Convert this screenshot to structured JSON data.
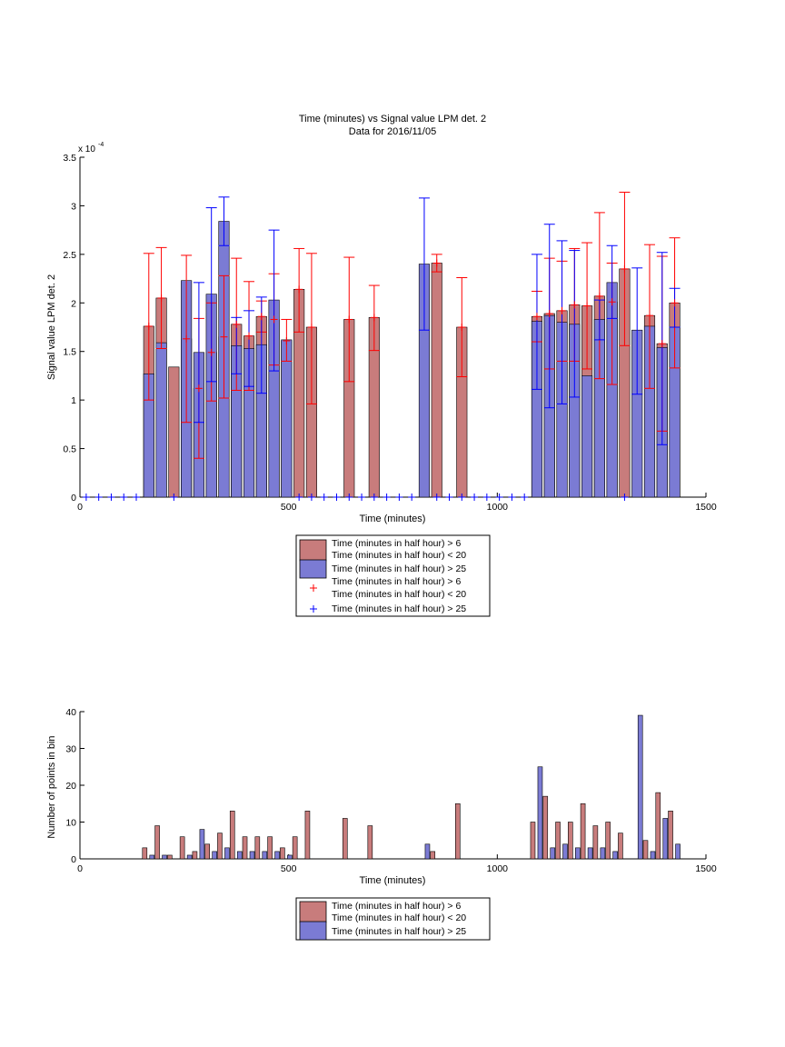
{
  "colors": {
    "red_bar": "#c87c7c",
    "blue_bar": "#7b7bd4",
    "red_err": "#ff0000",
    "blue_err": "#0000ff",
    "axis": "#000000"
  },
  "chart_data": [
    {
      "type": "bar",
      "title": "Time (minutes) vs Signal value LPM det. 2",
      "subtitle": "Data for 2016/11/05",
      "xlabel": "Time (minutes)",
      "ylabel": "Signal value LPM det. 2",
      "y_exponent_label": "x 10",
      "y_exponent": "-4",
      "xlim": [
        0,
        1500
      ],
      "ylim": [
        0,
        3.5
      ],
      "y_scale_factor": 0.0001,
      "xticks": [
        0,
        500,
        1000,
        1500
      ],
      "yticks": [
        0,
        0.5,
        1,
        1.5,
        2,
        2.5,
        3,
        3.5
      ],
      "xtick_labels": [
        "0",
        "500",
        "1000",
        "1500"
      ],
      "ytick_labels": [
        "0",
        "0.5",
        "1",
        "1.5",
        "2",
        "2.5",
        "3",
        "3.5"
      ],
      "grid": false,
      "legend_position": "below",
      "series": [
        {
          "name": "Time (minutes in half hour) > 6\nTime (minutes in half hour) < 20",
          "color": "#c87c7c",
          "x": [
            165,
            195,
            225,
            255,
            285,
            315,
            345,
            375,
            405,
            435,
            465,
            495,
            525,
            555,
            645,
            705,
            855,
            915,
            1095,
            1125,
            1155,
            1185,
            1215,
            1245,
            1275,
            1305,
            1365,
            1395,
            1425
          ],
          "values": [
            1.76,
            2.05,
            1.34,
            1.63,
            1.12,
            1.49,
            1.65,
            1.78,
            1.66,
            1.86,
            1.83,
            1.61,
            2.14,
            1.75,
            1.83,
            1.85,
            2.41,
            1.75,
            1.86,
            1.89,
            1.92,
            1.98,
            1.97,
            2.07,
            2.01,
            2.35,
            1.87,
            1.58,
            2.0
          ],
          "err_low": [
            1.0,
            1.53,
            1.34,
            0.77,
            0.4,
            0.99,
            1.02,
            1.1,
            1.1,
            1.7,
            1.36,
            1.4,
            1.7,
            0.96,
            1.19,
            1.51,
            2.32,
            1.24,
            1.6,
            1.32,
            1.4,
            1.4,
            1.32,
            1.22,
            1.16,
            1.56,
            1.12,
            0.68,
            1.33
          ],
          "err_high": [
            2.51,
            2.57,
            1.34,
            2.49,
            1.84,
            2.0,
            2.28,
            2.46,
            2.22,
            2.02,
            2.3,
            1.83,
            2.56,
            2.51,
            2.47,
            2.18,
            2.5,
            2.26,
            2.12,
            2.46,
            2.43,
            2.56,
            2.62,
            2.93,
            2.41,
            3.14,
            2.6,
            2.48,
            2.67
          ]
        },
        {
          "name": "Time (minutes in half hour) > 25",
          "color": "#7b7bd4",
          "x": [
            165,
            195,
            255,
            285,
            315,
            345,
            375,
            405,
            435,
            465,
            495,
            825,
            1095,
            1125,
            1155,
            1185,
            1215,
            1245,
            1275,
            1335,
            1365,
            1395,
            1425
          ],
          "values": [
            1.27,
            1.59,
            2.23,
            1.49,
            2.09,
            2.84,
            1.56,
            1.53,
            1.57,
            2.03,
            1.62,
            2.4,
            1.81,
            1.87,
            1.8,
            1.78,
            1.25,
            1.83,
            2.21,
            1.72,
            1.76,
            1.54,
            1.75
          ],
          "err_low": [
            1.27,
            1.59,
            2.23,
            0.77,
            1.19,
            2.59,
            1.27,
            1.14,
            1.07,
            1.3,
            1.62,
            1.72,
            1.11,
            0.92,
            0.96,
            1.03,
            1.25,
            1.62,
            1.84,
            1.06,
            1.76,
            0.54,
            1.75
          ],
          "err_high": [
            1.27,
            1.59,
            2.23,
            2.21,
            2.98,
            3.09,
            1.85,
            1.92,
            2.06,
            2.75,
            1.62,
            3.08,
            2.5,
            2.81,
            2.64,
            2.54,
            1.25,
            2.03,
            2.59,
            2.36,
            1.76,
            2.52,
            2.15
          ]
        }
      ],
      "marker_series": [
        {
          "name": "Time (minutes in half hour) > 6\nTime (minutes in half hour) < 20",
          "color": "#ff0000",
          "marker": "+",
          "x": [
            165,
            195,
            255,
            285,
            315,
            345,
            375,
            405,
            435,
            465,
            495,
            525,
            555,
            645,
            705,
            855,
            915,
            1095,
            1125,
            1155,
            1185,
            1215,
            1245,
            1275,
            1305,
            1365,
            1395,
            1425
          ],
          "values": [
            1.76,
            2.05,
            1.63,
            1.12,
            1.49,
            1.65,
            1.78,
            1.66,
            1.86,
            1.83,
            1.61,
            2.14,
            1.75,
            1.83,
            1.85,
            2.41,
            1.75,
            1.86,
            1.89,
            1.92,
            1.98,
            1.97,
            2.07,
            2.01,
            2.35,
            1.87,
            1.58,
            2.0
          ]
        },
        {
          "name": "Time (minutes in half hour) > 25",
          "color": "#0000ff",
          "marker": "+",
          "x": [
            15,
            45,
            75,
            105,
            135,
            225,
            525,
            555,
            585,
            615,
            645,
            675,
            705,
            735,
            765,
            795,
            855,
            885,
            915,
            945,
            975,
            1005,
            1035,
            1065,
            1305
          ],
          "values": [
            0,
            0,
            0,
            0,
            0,
            0,
            0,
            0,
            0,
            0,
            0,
            0,
            0,
            0,
            0,
            0,
            0,
            0,
            0,
            0,
            0,
            0,
            0,
            0,
            0
          ]
        }
      ]
    },
    {
      "type": "bar",
      "title": "",
      "xlabel": "Time (minutes)",
      "ylabel": "Number of points in bin",
      "xlim": [
        0,
        1500
      ],
      "ylim": [
        0,
        40
      ],
      "xticks": [
        0,
        500,
        1000,
        1500
      ],
      "yticks": [
        0,
        10,
        20,
        30,
        40
      ],
      "xtick_labels": [
        "0",
        "500",
        "1000",
        "1500"
      ],
      "ytick_labels": [
        "0",
        "10",
        "20",
        "30",
        "40"
      ],
      "grid": false,
      "legend_position": "below",
      "series": [
        {
          "name": "Time (minutes in half hour) > 6\nTime (minutes in half hour) < 20",
          "color": "#c87c7c",
          "x": [
            165,
            195,
            225,
            255,
            285,
            315,
            345,
            375,
            405,
            435,
            465,
            495,
            525,
            555,
            645,
            705,
            855,
            915,
            1095,
            1125,
            1155,
            1185,
            1215,
            1245,
            1275,
            1305,
            1365,
            1395,
            1425
          ],
          "values": [
            3,
            9,
            1,
            6,
            2,
            4,
            7,
            13,
            6,
            6,
            6,
            3,
            6,
            13,
            11,
            9,
            2,
            15,
            10,
            17,
            10,
            10,
            15,
            9,
            10,
            7,
            5,
            18,
            13
          ]
        },
        {
          "name": "Time (minutes in half hour) > 25",
          "color": "#7b7bd4",
          "x": [
            165,
            195,
            255,
            285,
            315,
            345,
            375,
            405,
            435,
            465,
            495,
            825,
            1095,
            1125,
            1155,
            1185,
            1215,
            1245,
            1275,
            1335,
            1365,
            1395,
            1425
          ],
          "values": [
            1,
            1,
            1,
            8,
            2,
            3,
            2,
            2,
            2,
            2,
            1,
            4,
            25,
            3,
            4,
            3,
            3,
            3,
            2,
            39,
            2,
            11,
            4
          ]
        }
      ]
    }
  ]
}
